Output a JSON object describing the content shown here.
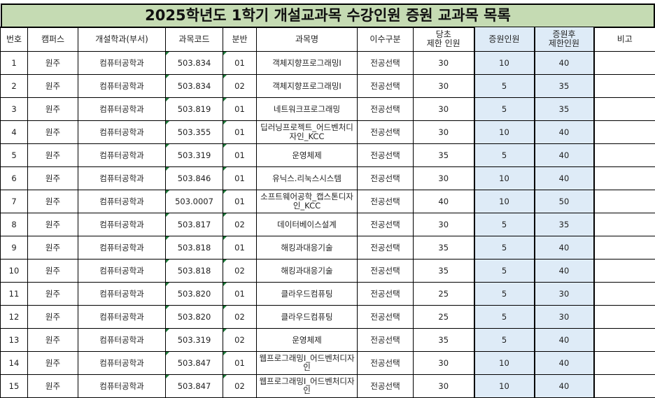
{
  "title": "2025학년도 1학기 개설교과목 수강인원 증원 교과목 목록",
  "headers": [
    "번호",
    "캠퍼스",
    "개설학과(부서)",
    "과목코드",
    "분반",
    "과목명",
    "이수구분",
    "당초\n제한 인원",
    "증원인원",
    "증원후\n제한인원",
    "비고"
  ],
  "rows": [
    [
      "1",
      "원주",
      "컴퓨터공학과",
      "503.834",
      "01",
      "객체지향프로그래밍Ⅰ",
      "전공선택",
      "30",
      "10",
      "40",
      ""
    ],
    [
      "2",
      "원주",
      "컴퓨터공학과",
      "503.834",
      "02",
      "객체지향프로그래밍Ⅰ",
      "전공선택",
      "30",
      "5",
      "35",
      ""
    ],
    [
      "3",
      "원주",
      "컴퓨터공학과",
      "503.819",
      "01",
      "네트워크프로그래밍",
      "전공선택",
      "30",
      "5",
      "35",
      ""
    ],
    [
      "4",
      "원주",
      "컴퓨터공학과",
      "503.355",
      "01",
      "딥러닝프로젝트_어드벤처디자인_KCC",
      "전공선택",
      "30",
      "10",
      "40",
      ""
    ],
    [
      "5",
      "원주",
      "컴퓨터공학과",
      "503.319",
      "01",
      "운영체제",
      "전공선택",
      "35",
      "5",
      "40",
      ""
    ],
    [
      "6",
      "원주",
      "컴퓨터공학과",
      "503.846",
      "01",
      "유닉스.리눅스시스템",
      "전공선택",
      "30",
      "10",
      "40",
      ""
    ],
    [
      "7",
      "원주",
      "컴퓨터공학과",
      "503.0007",
      "01",
      "소프트웨어공학_캡스톤디자인_KCC",
      "전공선택",
      "40",
      "10",
      "50",
      ""
    ],
    [
      "8",
      "원주",
      "컴퓨터공학과",
      "503.817",
      "02",
      "데이터베이스설계",
      "전공선택",
      "30",
      "5",
      "35",
      ""
    ],
    [
      "9",
      "원주",
      "컴퓨터공학과",
      "503.818",
      "01",
      "해킹과대응기술",
      "전공선택",
      "35",
      "5",
      "40",
      ""
    ],
    [
      "10",
      "원주",
      "컴퓨터공학과",
      "503.818",
      "02",
      "해킹과대응기술",
      "전공선택",
      "35",
      "5",
      "40",
      ""
    ],
    [
      "11",
      "원주",
      "컴퓨터공학과",
      "503.820",
      "01",
      "클라우드컴퓨팅",
      "전공선택",
      "25",
      "5",
      "30",
      ""
    ],
    [
      "12",
      "원주",
      "컴퓨터공학과",
      "503.820",
      "02",
      "클라우드컴퓨팅",
      "전공선택",
      "25",
      "5",
      "30",
      ""
    ],
    [
      "13",
      "원주",
      "컴퓨터공학과",
      "503.319",
      "02",
      "운영체제",
      "전공선택",
      "35",
      "5",
      "40",
      ""
    ],
    [
      "14",
      "원주",
      "컴퓨터공학과",
      "503.847",
      "01",
      "웹프로그래밍Ⅰ_어드벤처디자인",
      "전공선택",
      "30",
      "10",
      "40",
      ""
    ],
    [
      "15",
      "원주",
      "컴퓨터공학과",
      "503.847",
      "02",
      "웹프로그래밍Ⅰ_어드벤처디자인",
      "전공선택",
      "30",
      "10",
      "40",
      ""
    ]
  ],
  "colors": {
    "title_bg": "#c5dbb3",
    "highlight_bg": "#deebf7"
  }
}
